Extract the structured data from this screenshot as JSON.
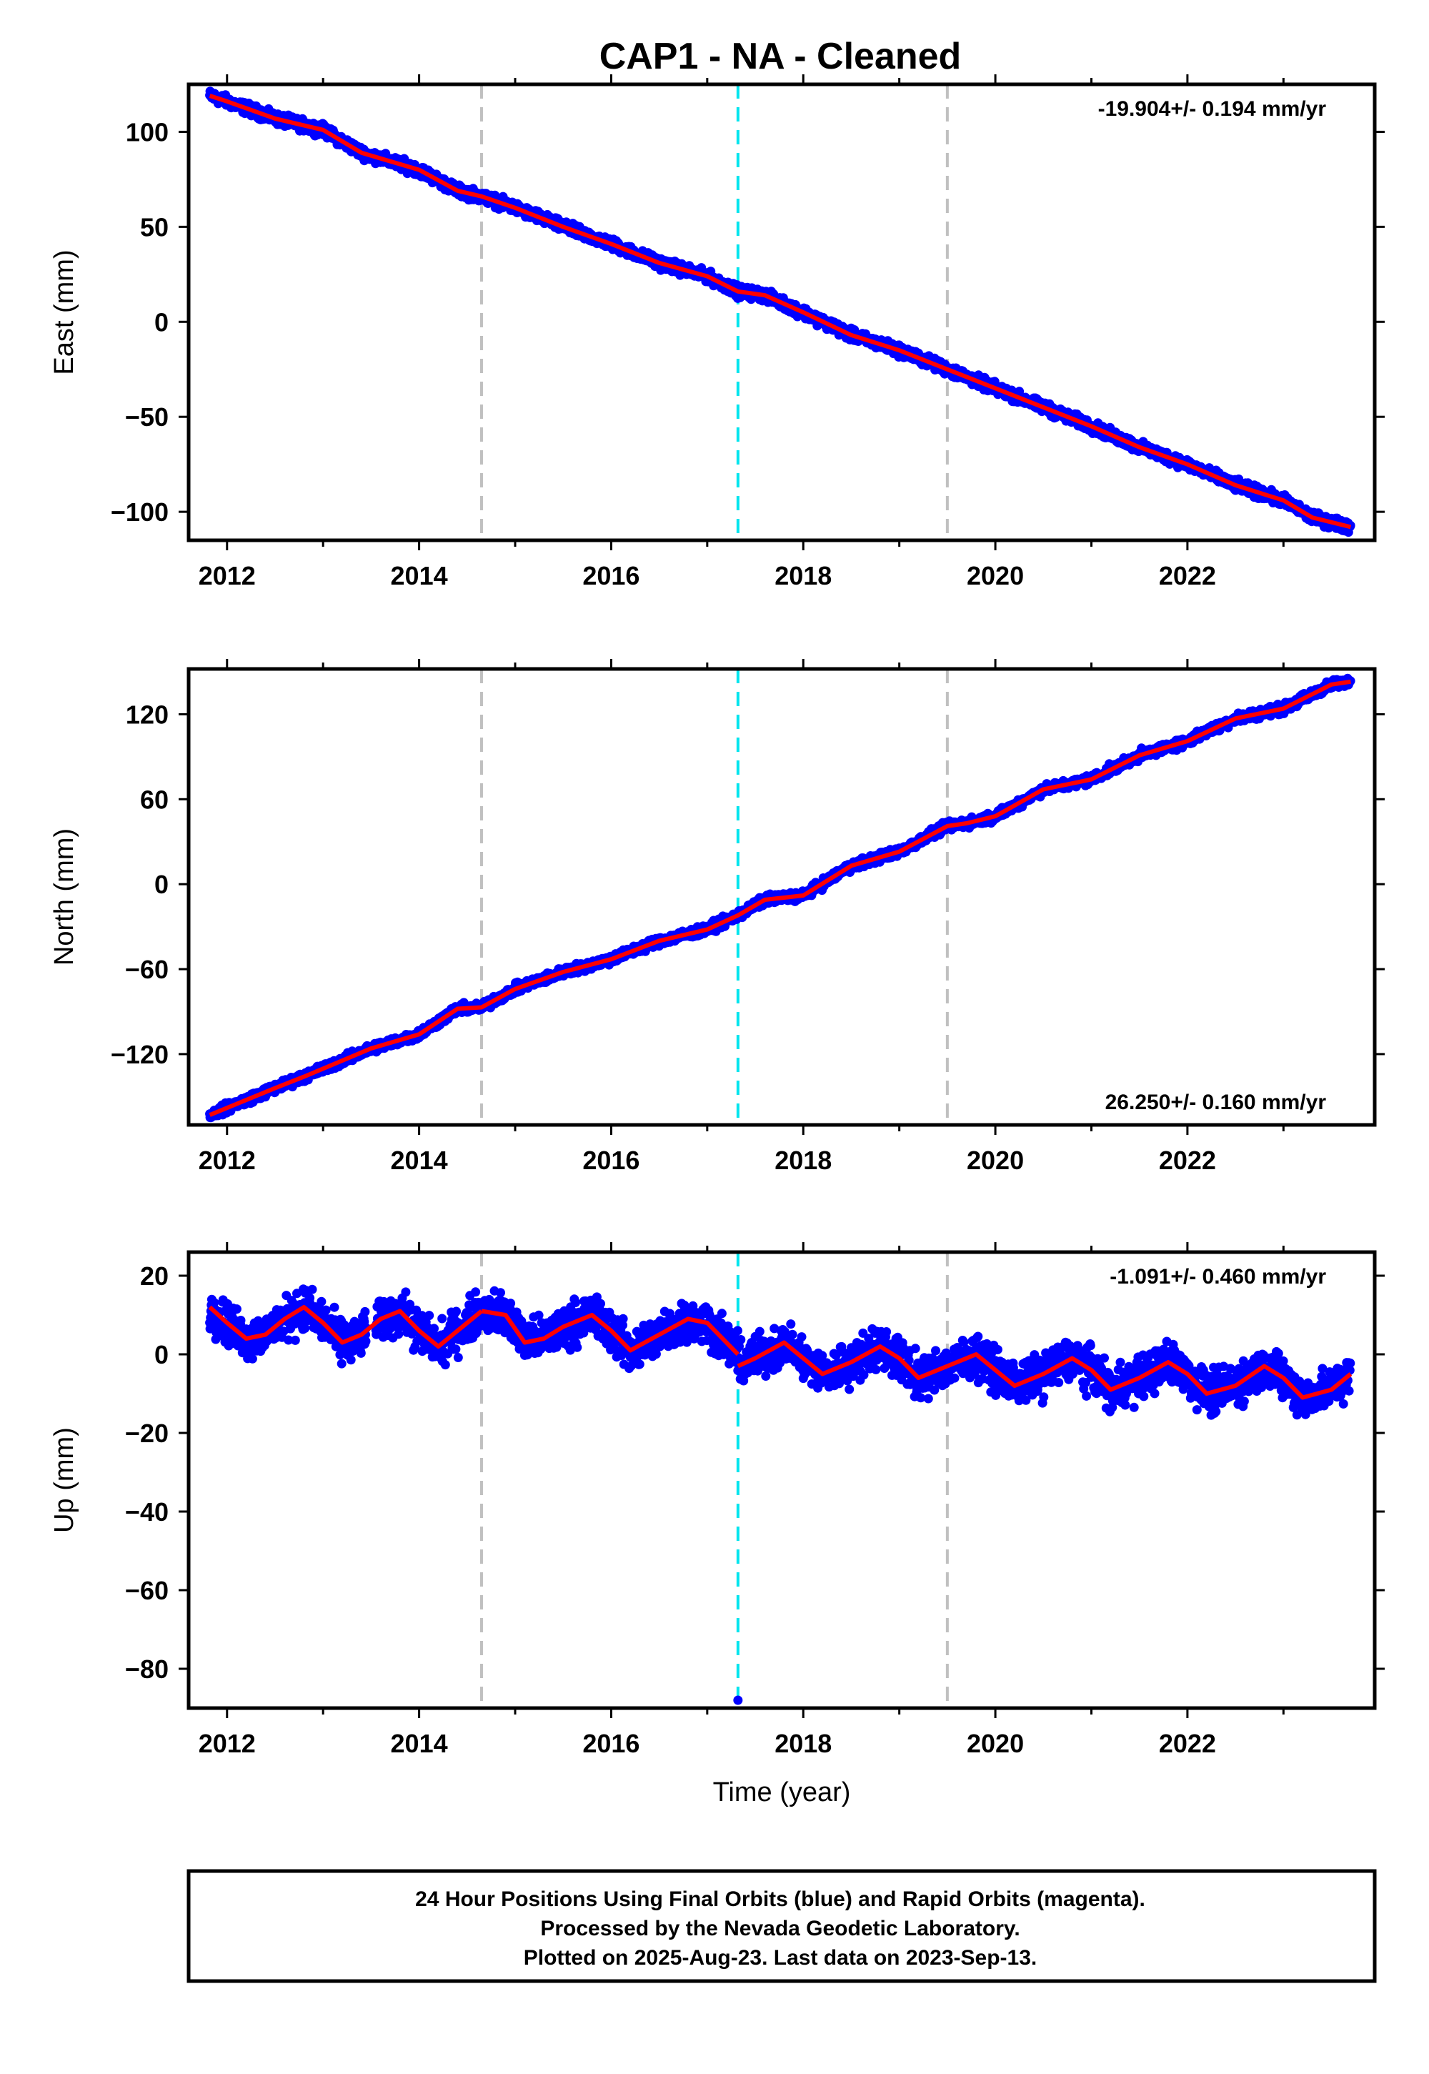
{
  "title": "CAP1  - NA - Cleaned",
  "footer": {
    "lines": [
      "24 Hour Positions Using Final Orbits (blue) and Rapid Orbits (magenta).",
      "Processed by the Nevada Geodetic Laboratory.",
      "Plotted on 2025-Aug-23. Last data on 2023-Sep-13."
    ]
  },
  "colors": {
    "final_orbit_points": "#0000ff",
    "fit_line": "#ff0000",
    "equipment_change_line": "#c0c0c0",
    "earthquake_line": "#00e5ee"
  },
  "chart_data": [
    {
      "type": "scatter",
      "name": "east",
      "ylabel": "East (mm)",
      "xlabel": "",
      "xlim": [
        2011.6,
        2023.95
      ],
      "ylim": [
        -115,
        125
      ],
      "yticks": [
        -100,
        -50,
        0,
        50,
        100
      ],
      "xticks": [
        2012,
        2014,
        2016,
        2018,
        2020,
        2022
      ],
      "rate_label": "-19.904+/- 0.194 mm/yr",
      "rate_position": "top-right",
      "vertical_lines": [
        {
          "x": 2014.65,
          "kind": "equipment"
        },
        {
          "x": 2017.32,
          "kind": "earthquake"
        },
        {
          "x": 2019.5,
          "kind": "equipment"
        }
      ],
      "series": [
        {
          "name": "fit",
          "x": [
            2011.82,
            2012.0,
            2012.5,
            2013.0,
            2013.4,
            2013.6,
            2014.0,
            2014.4,
            2014.65,
            2015.0,
            2015.5,
            2016.0,
            2016.5,
            2017.0,
            2017.32,
            2017.6,
            2018.0,
            2018.5,
            2019.0,
            2019.5,
            2020.0,
            2020.5,
            2021.0,
            2021.5,
            2022.0,
            2022.5,
            2023.0,
            2023.3,
            2023.7
          ],
          "y": [
            119,
            116,
            107,
            101,
            89,
            86,
            80,
            69,
            66,
            60,
            50,
            41,
            31,
            24,
            16,
            14,
            5,
            -7,
            -15,
            -25,
            -35,
            -45,
            -55,
            -66,
            -75,
            -86,
            -94,
            -103,
            -108
          ]
        },
        {
          "name": "daily",
          "noise_amplitude": 2.5
        }
      ]
    },
    {
      "type": "scatter",
      "name": "north",
      "ylabel": "North (mm)",
      "xlabel": "",
      "xlim": [
        2011.6,
        2023.95
      ],
      "ylim": [
        -170,
        152
      ],
      "yticks": [
        -120,
        -60,
        0,
        60,
        120
      ],
      "xticks": [
        2012,
        2014,
        2016,
        2018,
        2020,
        2022
      ],
      "rate_label": "26.250+/- 0.160 mm/yr",
      "rate_position": "bottom-right",
      "vertical_lines": [
        {
          "x": 2014.65,
          "kind": "equipment"
        },
        {
          "x": 2017.32,
          "kind": "earthquake"
        },
        {
          "x": 2019.5,
          "kind": "equipment"
        }
      ],
      "series": [
        {
          "name": "fit",
          "x": [
            2011.82,
            2012.5,
            2012.8,
            2013.5,
            2014.0,
            2014.4,
            2014.65,
            2015.0,
            2015.5,
            2016.0,
            2016.5,
            2017.0,
            2017.32,
            2017.6,
            2018.0,
            2018.5,
            2019.0,
            2019.5,
            2019.7,
            2020.0,
            2020.5,
            2021.0,
            2021.5,
            2022.0,
            2022.5,
            2023.0,
            2023.5,
            2023.7
          ],
          "y": [
            -163,
            -144,
            -136,
            -116,
            -106,
            -88,
            -87,
            -74,
            -62,
            -53,
            -40,
            -32,
            -22,
            -11,
            -8,
            13,
            23,
            41,
            43,
            48,
            67,
            74,
            91,
            101,
            117,
            124,
            141,
            143
          ]
        },
        {
          "name": "daily",
          "noise_amplitude": 2.8
        }
      ]
    },
    {
      "type": "scatter",
      "name": "up",
      "ylabel": "Up (mm)",
      "xlabel": "Time (year)",
      "xlim": [
        2011.6,
        2023.95
      ],
      "ylim": [
        -90,
        26
      ],
      "yticks": [
        -80,
        -60,
        -40,
        -20,
        0,
        20
      ],
      "xticks": [
        2012,
        2014,
        2016,
        2018,
        2020,
        2022
      ],
      "rate_label": "-1.091+/- 0.460 mm/yr",
      "rate_position": "top-right",
      "vertical_lines": [
        {
          "x": 2014.65,
          "kind": "equipment"
        },
        {
          "x": 2017.32,
          "kind": "earthquake"
        },
        {
          "x": 2019.5,
          "kind": "equipment"
        }
      ],
      "series": [
        {
          "name": "fit",
          "segments": [
            {
              "x": [
                2011.82,
                2012.0,
                2012.2,
                2012.4,
                2012.6,
                2012.8,
                2013.0,
                2013.2,
                2013.4,
                2013.6,
                2013.8,
                2014.0,
                2014.2,
                2014.4,
                2014.65
              ],
              "y": [
                12,
                8,
                4,
                5,
                9,
                12,
                8,
                3,
                5,
                9,
                11,
                6,
                2,
                6,
                11
              ]
            },
            {
              "x": [
                2014.65,
                2014.9,
                2015.1,
                2015.3,
                2015.5,
                2015.8,
                2016.0,
                2016.2,
                2016.5,
                2016.8,
                2017.0,
                2017.32
              ],
              "y": [
                11,
                10,
                3,
                4,
                7,
                10,
                6,
                1,
                5,
                9,
                8,
                0
              ]
            },
            {
              "x": [
                2017.32,
                2017.5,
                2017.8,
                2018.0,
                2018.2,
                2018.5,
                2018.8,
                2019.0,
                2019.2,
                2019.5
              ],
              "y": [
                -3,
                -1,
                3,
                -1,
                -5,
                -2,
                2,
                -1,
                -6,
                -3
              ]
            },
            {
              "x": [
                2019.5,
                2019.8,
                2020.0,
                2020.2,
                2020.5,
                2020.8,
                2021.0,
                2021.2,
                2021.5,
                2021.8,
                2022.0,
                2022.2,
                2022.5,
                2022.8,
                2023.0,
                2023.2,
                2023.5,
                2023.7
              ],
              "y": [
                -3,
                0,
                -4,
                -8,
                -5,
                -1,
                -4,
                -9,
                -6,
                -2,
                -5,
                -10,
                -8,
                -3,
                -6,
                -11,
                -9,
                -5
              ]
            }
          ]
        },
        {
          "name": "daily",
          "noise_amplitude": 4.5
        },
        {
          "name": "outlier",
          "x": [
            2017.32
          ],
          "y": [
            -88
          ]
        }
      ]
    }
  ]
}
